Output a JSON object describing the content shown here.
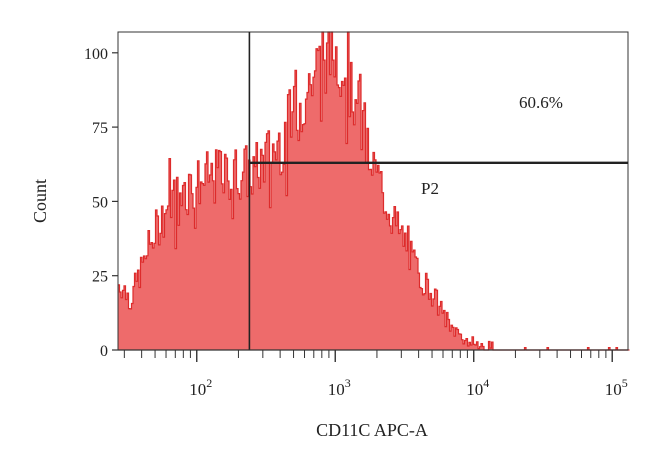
{
  "chart_data": {
    "type": "area",
    "title": "",
    "xlabel": "CD11C APC-A",
    "ylabel": "Count",
    "xscale": "log",
    "xlim": [
      27,
      130000
    ],
    "ylim": [
      0,
      107
    ],
    "y_ticks": [
      0,
      25,
      50,
      75,
      100
    ],
    "x_ticks": [
      {
        "value": 100,
        "base": "10",
        "exp": "2"
      },
      {
        "value": 1000,
        "base": "10",
        "exp": "3"
      },
      {
        "value": 10000,
        "base": "10",
        "exp": "4"
      },
      {
        "value": 100000,
        "base": "10",
        "exp": "5"
      }
    ],
    "colors": {
      "fill": "#ee6b6b",
      "line": "#dd2b2b",
      "axis": "#333333",
      "gate": "#222222"
    },
    "series": [
      {
        "x": [
          28,
          30,
          33,
          36,
          40,
          45,
          50,
          56,
          63,
          70,
          80,
          90,
          100,
          112,
          126,
          141,
          158,
          178,
          200,
          224,
          251,
          282,
          316,
          355,
          398,
          447,
          501,
          562,
          631,
          708,
          794,
          891,
          1000,
          1122,
          1259,
          1413,
          1585,
          1778,
          1995,
          2239,
          2512,
          2818,
          3162,
          3548,
          3981,
          4467,
          5012,
          5623,
          6310,
          7079,
          7943,
          8913,
          10000,
          11220,
          12590,
          15000,
          20000,
          30000,
          50000,
          80000,
          100000,
          120000
        ],
        "values": [
          22,
          20,
          17,
          22,
          28,
          35,
          40,
          45,
          50,
          52,
          54,
          55,
          56,
          57,
          58,
          58,
          58,
          59,
          60,
          60,
          59,
          62,
          65,
          67,
          70,
          74,
          78,
          83,
          88,
          94,
          97,
          99,
          100,
          96,
          90,
          82,
          74,
          64,
          58,
          52,
          46,
          40,
          36,
          30,
          26,
          22,
          19,
          14,
          10,
          7,
          5,
          3,
          2,
          1,
          1,
          0,
          0,
          0,
          0,
          0,
          0,
          0
        ]
      }
    ],
    "gates": [
      {
        "name": "P2",
        "x_start": 240,
        "level": 63,
        "percent": "60.6%"
      }
    ]
  }
}
